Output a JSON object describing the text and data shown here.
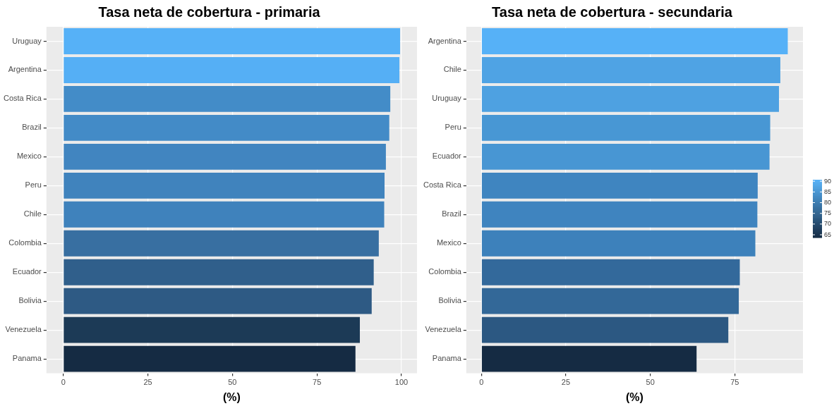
{
  "chart_data": [
    {
      "type": "bar",
      "orientation": "horizontal",
      "title": "Tasa neta de cobertura - primaria",
      "xlabel": "(%)",
      "categories": [
        "Uruguay",
        "Argentina",
        "Costa Rica",
        "Brazil",
        "Mexico",
        "Peru",
        "Chile",
        "Colombia",
        "Ecuador",
        "Bolivia",
        "Venezuela",
        "Panama"
      ],
      "values": [
        99.6,
        99.4,
        96.7,
        96.4,
        95.4,
        95.0,
        94.9,
        93.3,
        91.8,
        91.2,
        87.7,
        86.4
      ],
      "colors": [
        "#56b1f7",
        "#55aff5",
        "#438cc8",
        "#438bc7",
        "#4185c0",
        "#4083bd",
        "#3f82bc",
        "#386fa1",
        "#305f8b",
        "#2e5a84",
        "#1c3a56",
        "#152b43"
      ],
      "xlim": [
        -5,
        104.6
      ],
      "xticks": [
        0,
        25,
        50,
        75,
        100
      ],
      "grid": true
    },
    {
      "type": "bar",
      "orientation": "horizontal",
      "title": "Tasa neta de cobertura - secundaria",
      "xlabel": "(%)",
      "categories": [
        "Argentina",
        "Chile",
        "Uruguay",
        "Peru",
        "Ecuador",
        "Costa Rica",
        "Brazil",
        "Mexico",
        "Colombia",
        "Bolivia",
        "Venezuela",
        "Panama"
      ],
      "values": [
        90.7,
        88.5,
        88.1,
        85.5,
        85.3,
        81.8,
        81.7,
        81.1,
        76.5,
        76.2,
        73.1,
        63.7
      ],
      "colors": [
        "#56b1f7",
        "#4fa3e4",
        "#4ea1e1",
        "#4897d4",
        "#4896d3",
        "#3f85c0",
        "#3f84bf",
        "#3d81bb",
        "#33699b",
        "#336898",
        "#2c5882",
        "#152b43"
      ],
      "xlim": [
        -4.5,
        95.2
      ],
      "xticks": [
        0,
        25,
        50,
        75
      ],
      "grid": true,
      "clim": [
        63.7,
        90.7
      ],
      "cticks": [
        65,
        70,
        75,
        80,
        85,
        90
      ]
    }
  ]
}
